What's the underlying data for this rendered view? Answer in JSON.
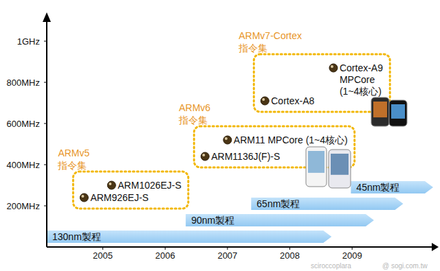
{
  "chart_data": {
    "type": "scatter",
    "xlim": [
      2004.1,
      2010.3
    ],
    "xticks": [
      2005,
      2006,
      2007,
      2008,
      2009
    ],
    "ylim": [
      0,
      1100
    ],
    "yticks": [
      {
        "value": 200,
        "label": "200MHz"
      },
      {
        "value": 400,
        "label": "400MHz"
      },
      {
        "value": 600,
        "label": "600MHz"
      },
      {
        "value": 800,
        "label": "800MHz"
      },
      {
        "value": 1000,
        "label": "1GHz"
      }
    ],
    "series": [
      {
        "name": "ARMv5 指令集",
        "color": "#4a3515",
        "x": [
          2004.7,
          2005.14
        ],
        "values": [
          240,
          300
        ],
        "labels": [
          "ARM926EJ-S",
          "ARM1026EJ-S"
        ]
      },
      {
        "name": "ARMv6 指令集",
        "color": "#4a3515",
        "x": [
          2006.64,
          2007.0
        ],
        "values": [
          440,
          520
        ],
        "labels": [
          "ARM1136J(F)-S",
          "ARM11 MPCore (1~4核心)"
        ]
      },
      {
        "name": "ARMv7-Cortex 指令集",
        "color": "#4a3515",
        "x": [
          2007.6,
          2008.7
        ],
        "values": [
          710,
          870
        ],
        "labels": [
          "Cortex-A8",
          "Cortex-A9\nMPCore\n(1~4核心)"
        ]
      }
    ],
    "processes": [
      {
        "label": "130nm製程",
        "start": 2004.1,
        "end": 2008.67
      },
      {
        "label": "90nm製程",
        "start": 2006.33,
        "end": 2009.35
      },
      {
        "label": "65nm製程",
        "start": 2007.38,
        "end": 2009.82
      },
      {
        "label": "45nm製程",
        "start": 2008.98,
        "end": 2010.3
      }
    ],
    "watermark": [
      "sciroccoplara",
      "@ sogi.com.tw"
    ]
  }
}
